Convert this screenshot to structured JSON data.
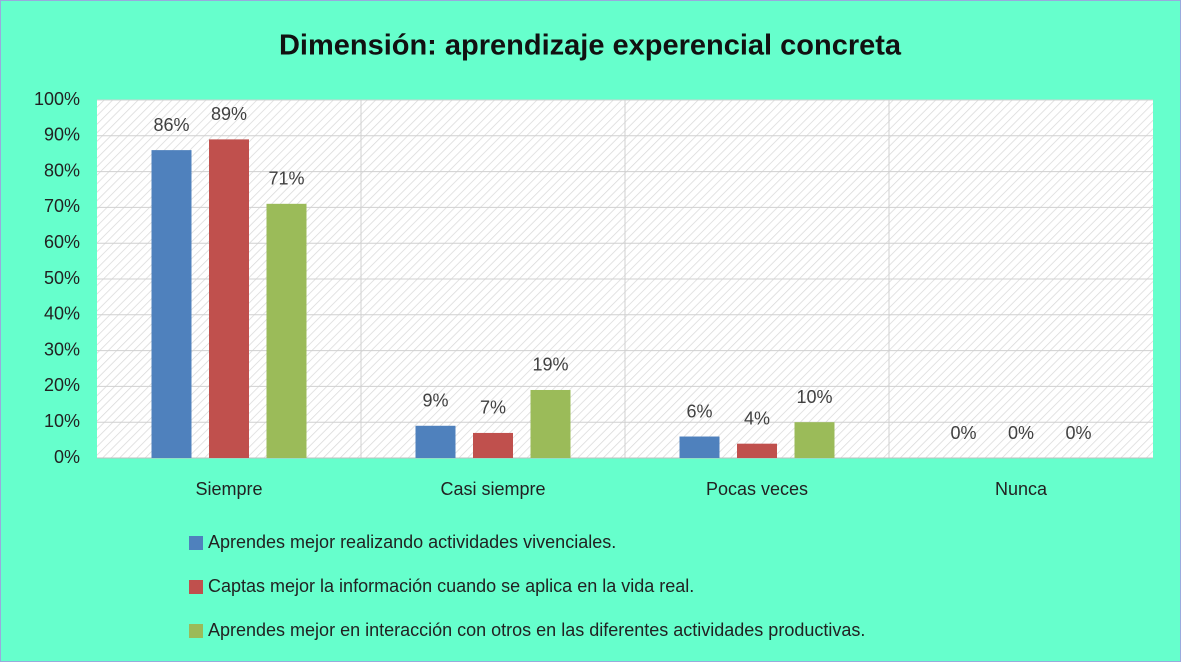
{
  "chart_data": {
    "type": "bar",
    "title": "Dimensión: aprendizaje experencial concreta",
    "categories": [
      "Siempre",
      "Casi siempre",
      "Pocas veces",
      "Nunca"
    ],
    "series": [
      {
        "name": "Aprendes mejor realizando actividades vivenciales.",
        "color": "#4f81bd",
        "values": [
          86,
          9,
          6,
          0
        ],
        "value_labels": [
          "86%",
          "9%",
          "6%",
          "0%"
        ]
      },
      {
        "name": "Captas mejor la información cuando se aplica en la vida real.",
        "color": "#c0504d",
        "values": [
          89,
          7,
          4,
          0
        ],
        "value_labels": [
          "89%",
          "7%",
          "4%",
          "0%"
        ]
      },
      {
        "name": "Aprendes mejor en interacción con otros en las diferentes actividades productivas.",
        "color": "#9bbb59",
        "values": [
          71,
          19,
          10,
          0
        ],
        "value_labels": [
          "71%",
          "19%",
          "10%",
          "0%"
        ]
      }
    ],
    "ylim": [
      0,
      100
    ],
    "yticks": [
      {
        "value": 0,
        "label": "0%"
      },
      {
        "value": 10,
        "label": "10%"
      },
      {
        "value": 20,
        "label": "20%"
      },
      {
        "value": 30,
        "label": "30%"
      },
      {
        "value": 40,
        "label": "40%"
      },
      {
        "value": 50,
        "label": "50%"
      },
      {
        "value": 60,
        "label": "60%"
      },
      {
        "value": 70,
        "label": "70%"
      },
      {
        "value": 80,
        "label": "80%"
      },
      {
        "value": 90,
        "label": "90%"
      },
      {
        "value": 100,
        "label": "100%"
      }
    ],
    "grid": true,
    "legend": "bottom"
  }
}
